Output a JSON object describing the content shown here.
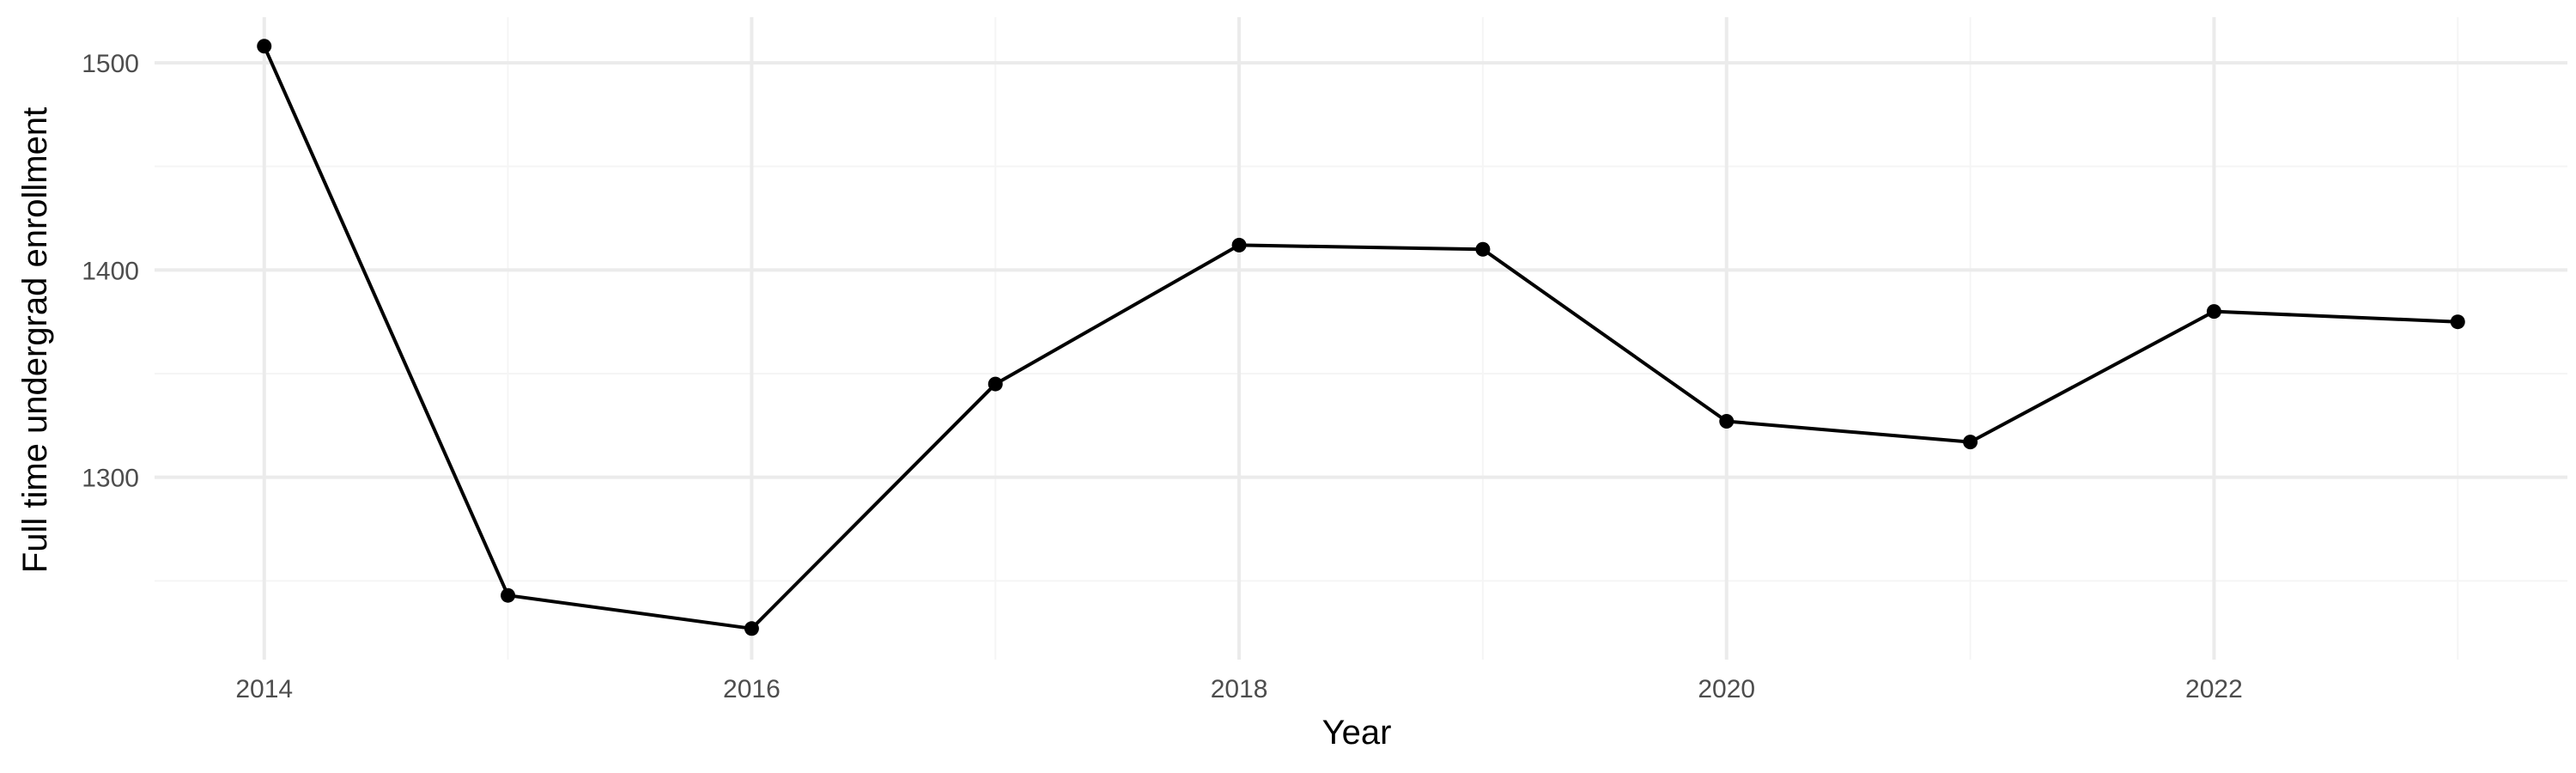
{
  "chart_data": {
    "type": "line",
    "title": "",
    "xlabel": "Year",
    "ylabel": "Full time undergrad enrollment",
    "x": [
      2014,
      2015,
      2016,
      2017,
      2018,
      2019,
      2020,
      2021,
      2022,
      2023
    ],
    "series": [
      {
        "values": [
          1508,
          1243,
          1227,
          1345,
          1412,
          1410,
          1327,
          1317,
          1380,
          1375
        ]
      }
    ],
    "xlim": [
      2013.55,
      2023.45
    ],
    "ylim": [
      1212,
      1522
    ],
    "x_ticks": [
      {
        "value": 2014,
        "label": "2014"
      },
      {
        "value": 2016,
        "label": "2016"
      },
      {
        "value": 2018,
        "label": "2018"
      },
      {
        "value": 2020,
        "label": "2020"
      },
      {
        "value": 2022,
        "label": "2022"
      }
    ],
    "x_minor_ticks": [
      2015,
      2017,
      2019,
      2021,
      2023
    ],
    "y_ticks": [
      {
        "value": 1300,
        "label": "1300"
      },
      {
        "value": 1400,
        "label": "1400"
      },
      {
        "value": 1500,
        "label": "1500"
      }
    ],
    "y_minor_ticks": [
      1250,
      1350,
      1450
    ],
    "grid": true,
    "legend": "none",
    "colors": {
      "line": "#000000",
      "point": "#000000",
      "grid_major": "#ebebeb",
      "grid_minor": "#f5f5f5"
    }
  }
}
